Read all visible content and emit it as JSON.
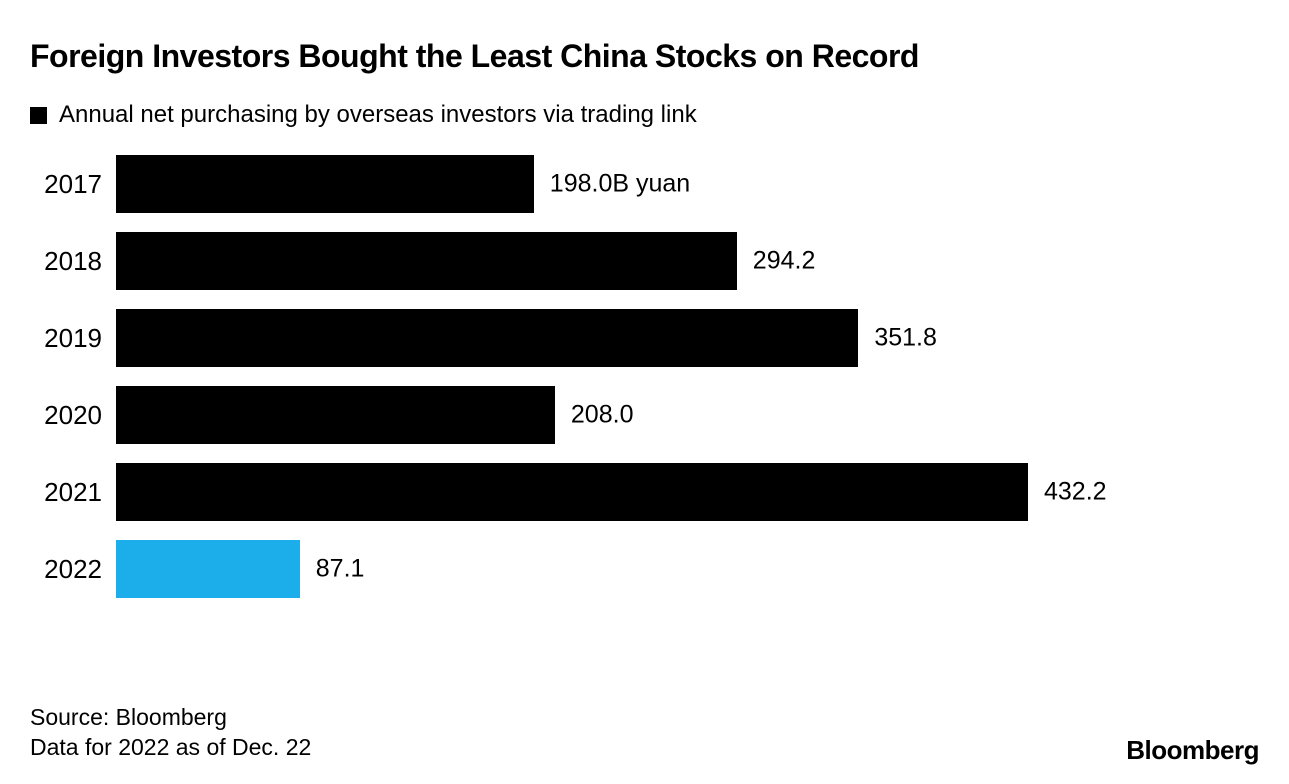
{
  "title": "Foreign Investors Bought the Least China Stocks on Record",
  "legend": {
    "swatch_color": "#000000",
    "label": "Annual net purchasing by overseas investors via trading link"
  },
  "source": {
    "line1": "Source: Bloomberg",
    "line2": "Data for 2022 as of Dec. 22"
  },
  "brand": "Bloomberg",
  "colors": {
    "bar_default": "#000000",
    "bar_highlight": "#1CAEEB",
    "background": "#ffffff",
    "text": "#000000"
  },
  "chart_data": {
    "type": "bar",
    "orientation": "horizontal",
    "title": "Foreign Investors Bought the Least China Stocks on Record",
    "subtitle": "Annual net purchasing by overseas investors via trading link",
    "categories": [
      "2017",
      "2018",
      "2019",
      "2020",
      "2021",
      "2022"
    ],
    "values": [
      198.0,
      294.2,
      351.8,
      208.0,
      432.2,
      87.1
    ],
    "value_labels": [
      "198.0B yuan",
      "294.2",
      "351.8",
      "208.0",
      "432.2",
      "87.1"
    ],
    "unit": "B yuan",
    "xlim": [
      0,
      432.2
    ],
    "highlight_category": "2022",
    "grid": false,
    "legend_position": "top-left"
  }
}
